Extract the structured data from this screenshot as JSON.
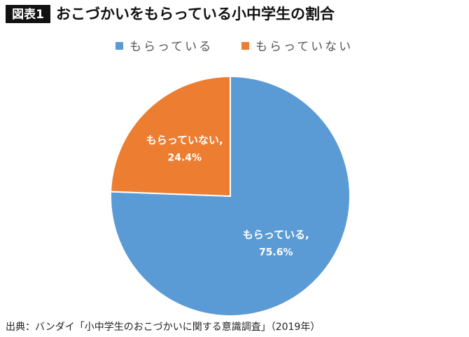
{
  "chart_data": {
    "type": "pie",
    "figure_label": "図表1",
    "title": "おこづかいをもらっている小中学生の割合",
    "categories": [
      "もらっている",
      "もらっていない"
    ],
    "values": [
      75.6,
      24.4
    ],
    "value_labels": [
      "75.6%",
      "24.4%"
    ],
    "slice_labels": [
      "もらっている,",
      "もらっていない,"
    ],
    "colors": [
      "#5b9bd5",
      "#ed7d31"
    ],
    "source": "出典：バンダイ「小中学生のおこづかいに関する意識調査」（2019年）"
  }
}
